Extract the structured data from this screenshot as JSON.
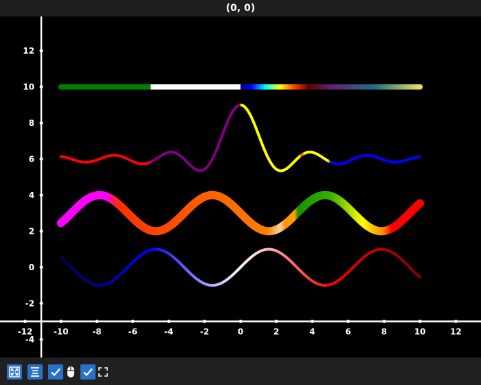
{
  "window": {
    "coord_readout": "(0, 0)"
  },
  "toolbar": {
    "buttons": [
      {
        "name": "fit-to-data-button",
        "icon": "fit-arrows-icon",
        "checked": false
      },
      {
        "name": "auto-align-button",
        "icon": "align-lines-icon",
        "checked": false
      },
      {
        "name": "mouse-interaction-toggle",
        "icon": "mouse-icon",
        "checked": true
      },
      {
        "name": "fullscreen-toggle",
        "icon": "fullscreen-icon",
        "checked": true
      }
    ]
  },
  "chart_data": {
    "type": "line",
    "title": "",
    "xlabel": "",
    "ylabel": "",
    "xlim": [
      -13.4,
      13.4
    ],
    "ylim": [
      -5.0,
      13.9
    ],
    "x_ticks": [
      -12,
      -10,
      -8,
      -6,
      -4,
      -2,
      0,
      2,
      4,
      6,
      8,
      10,
      12
    ],
    "y_ticks": [
      -4,
      -2,
      0,
      2,
      4,
      6,
      8,
      10,
      12
    ],
    "x_tick_labels": [
      "-12",
      "-10",
      "-8",
      "-6",
      "-4",
      "-2",
      "0",
      "2",
      "4",
      "6",
      "8",
      "10",
      "12"
    ],
    "y_tick_labels": [
      "-4",
      "-2",
      "0",
      "2",
      "4",
      "6",
      "8",
      "10",
      "12"
    ],
    "grid": false,
    "series": [
      {
        "formula": "y = 10",
        "x_range": [
          -10,
          10
        ],
        "line_width": 8,
        "gradient": [
          {
            "x": -10,
            "color": "#008000"
          },
          {
            "x": -5.01,
            "color": "#008000"
          },
          {
            "x": -5,
            "color": "#ffffff"
          },
          {
            "x": -0.01,
            "color": "#ffffff"
          },
          {
            "x": 0,
            "color": "#000080"
          },
          {
            "x": 0.6,
            "color": "#0000ff"
          },
          {
            "x": 1.4,
            "color": "#00ffff"
          },
          {
            "x": 2.2,
            "color": "#ffff00"
          },
          {
            "x": 3.0,
            "color": "#ff4000"
          },
          {
            "x": 3.8,
            "color": "#600000"
          },
          {
            "x": 5.0,
            "color": "#602070"
          },
          {
            "x": 7.5,
            "color": "#207080"
          },
          {
            "x": 10,
            "color": "#e8e060"
          }
        ]
      },
      {
        "formula": "y = 6 + 3*sin(2x)/(2x)  (sinc)",
        "x_range": [
          -10,
          10
        ],
        "line_width": 4,
        "gradient": [
          {
            "x": -10,
            "color": "#ff0000"
          },
          {
            "x": -5.01,
            "color": "#ff0000"
          },
          {
            "x": -5,
            "color": "#800080"
          },
          {
            "x": -0.01,
            "color": "#800080"
          },
          {
            "x": 0,
            "color": "#ffff00"
          },
          {
            "x": 3.3,
            "color": "#ffff00"
          },
          {
            "x": 3.4,
            "color": "#ff3000"
          },
          {
            "x": 3.55,
            "color": "#ffff00"
          },
          {
            "x": 4.9,
            "color": "#ffff00"
          },
          {
            "x": 5,
            "color": "#0000ff"
          },
          {
            "x": 10,
            "color": "#0000ff"
          }
        ]
      },
      {
        "formula": "y = 3 - sin(x)",
        "x_range": [
          -10,
          10
        ],
        "line_width": 12,
        "gradient": [
          {
            "x": -10,
            "color": "#ff00ff"
          },
          {
            "x": -7.5,
            "color": "#ff00ff"
          },
          {
            "x": -6.8,
            "color": "#ff3000"
          },
          {
            "x": 1.5,
            "color": "#ff8000"
          },
          {
            "x": 2.2,
            "color": "#ffd0a0"
          },
          {
            "x": 2.5,
            "color": "#ff9000"
          },
          {
            "x": 3.0,
            "color": "#ffa000"
          },
          {
            "x": 3.2,
            "color": "#209000"
          },
          {
            "x": 5.0,
            "color": "#30b000"
          },
          {
            "x": 6.8,
            "color": "#ffff00"
          },
          {
            "x": 8.0,
            "color": "#ff8000"
          },
          {
            "x": 8.4,
            "color": "#ff0000"
          },
          {
            "x": 10,
            "color": "#ff0000"
          }
        ]
      },
      {
        "formula": "y = sin(x)",
        "x_range": [
          -10,
          10
        ],
        "line_width": 4,
        "gradient": [
          {
            "x": -10,
            "color": "#000050"
          },
          {
            "x": -5,
            "color": "#0000ff"
          },
          {
            "x": 0,
            "color": "#ffffff"
          },
          {
            "x": 5,
            "color": "#ff0000"
          },
          {
            "x": 10,
            "color": "#800000"
          }
        ]
      }
    ]
  }
}
